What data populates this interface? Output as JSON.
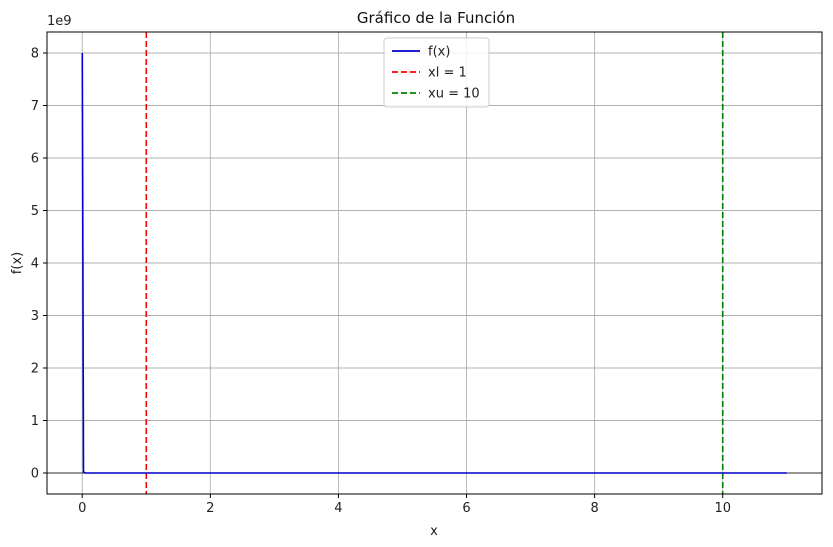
{
  "chart_data": {
    "type": "line",
    "title": "Gráfico de la Función",
    "xlabel": "x",
    "ylabel": "f(x)",
    "y_offset_label": "1e9",
    "xlim": [
      -0.55,
      11.55
    ],
    "ylim": [
      -0.4,
      8.4
    ],
    "y_scale_factor": 1000000000,
    "x_ticks": [
      0,
      2,
      4,
      6,
      8,
      10
    ],
    "x_tick_labels": [
      "0",
      "2",
      "4",
      "6",
      "8",
      "10"
    ],
    "y_ticks": [
      0,
      1,
      2,
      3,
      4,
      5,
      6,
      7,
      8
    ],
    "y_tick_labels": [
      "0",
      "1",
      "2",
      "3",
      "4",
      "5",
      "6",
      "7",
      "8"
    ],
    "grid": true,
    "zero_line": true,
    "legend_position": "top-center",
    "series": [
      {
        "name": "f(x)",
        "color": "#0000cc",
        "style": "solid",
        "x": [
          0.001,
          0.02,
          0.05,
          1,
          2,
          4,
          6,
          8,
          10,
          11
        ],
        "y": [
          8.0,
          0.02,
          0.0,
          0.0,
          0.0,
          0.0,
          0.0,
          0.0,
          0.0,
          0.0
        ]
      }
    ],
    "vlines": [
      {
        "name": "xl = 1",
        "x": 1,
        "color": "#ff0000",
        "style": "dashed"
      },
      {
        "name": "xu = 10",
        "x": 10,
        "color": "#008000",
        "style": "dashed"
      }
    ]
  }
}
